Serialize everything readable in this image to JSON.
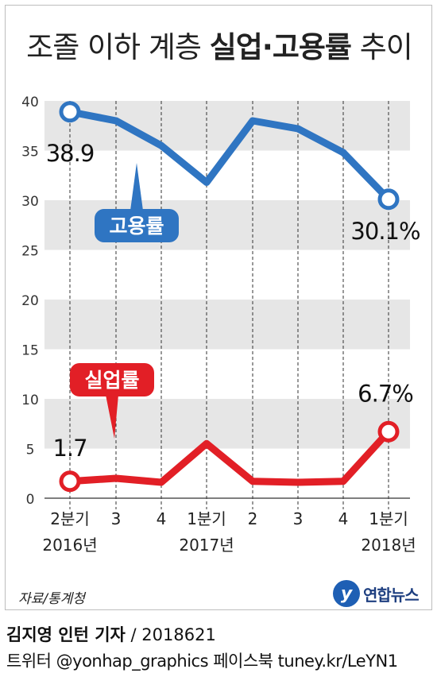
{
  "header": {
    "title_plain": "조졸 이하 계층",
    "title_bold": "실업·고용률",
    "title_tail": "추이"
  },
  "chart_data": {
    "type": "line",
    "x": [
      "2분기",
      "3",
      "4",
      "1분기",
      "2",
      "3",
      "4",
      "1분기"
    ],
    "x_years": [
      {
        "label": "2016년",
        "index": 0
      },
      {
        "label": "2017년",
        "index": 3
      },
      {
        "label": "2018년",
        "index": 7
      }
    ],
    "ylim": [
      0,
      40
    ],
    "yticks": [
      0,
      5,
      10,
      15,
      20,
      25,
      30,
      35,
      40
    ],
    "series": [
      {
        "name": "고용률",
        "color": "#2f75c2",
        "values": [
          38.9,
          38.0,
          35.5,
          31.8,
          38.0,
          37.2,
          34.8,
          30.1
        ],
        "start_label": "38.9",
        "end_label": "30.1%"
      },
      {
        "name": "실업률",
        "color": "#e21f26",
        "values": [
          1.7,
          2.0,
          1.6,
          5.5,
          1.7,
          1.6,
          1.7,
          6.7
        ],
        "start_label": "1.7",
        "end_label": "6.7%"
      }
    ]
  },
  "footer": {
    "source": "자료/통계청",
    "logo_mark": "y",
    "logo_text": "연합뉴스",
    "credit_bold": "김지영 인턴 기자",
    "credit_rest": " / 2018621",
    "sns": "트위터 @yonhap_graphics  페이스북 tuney.kr/LeYN1"
  }
}
